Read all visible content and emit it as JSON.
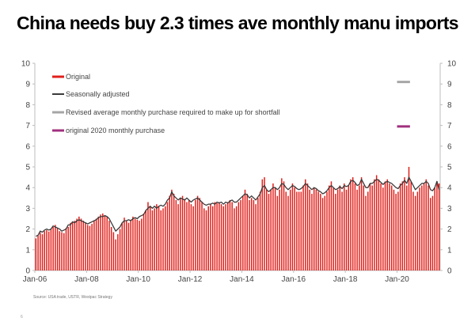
{
  "title": "China needs buy 2.3 times ave monthly manu imports",
  "source": "Source: USA trade, USTR, Westpac Strategy",
  "page_number": "6",
  "colors": {
    "original": "#e0201b",
    "seasonally_adjusted": "#3a3a3a",
    "revised": "#a6a6a6",
    "original_2020": "#a0307e",
    "axis": "#bdbdbd",
    "text": "#444444"
  },
  "chart_data": {
    "type": "bar",
    "title": "China needs buy 2.3 times ave monthly manu imports",
    "ylim": [
      0,
      10
    ],
    "yticks_left": [
      "0",
      "1",
      "2",
      "3",
      "4",
      "5",
      "6",
      "7",
      "8",
      "9",
      "10"
    ],
    "yticks_right": [
      "0",
      "1",
      "2",
      "3",
      "4",
      "5",
      "6",
      "7",
      "8",
      "9",
      "10"
    ],
    "x_tick_labels": [
      "Jan-06",
      "Jan-08",
      "Jan-10",
      "Jan-12",
      "Jan-14",
      "Jan-16",
      "Jan-18",
      "Jan-20"
    ],
    "x_start": "Jan-06",
    "x_end": "Jun-20",
    "legend": [
      {
        "key": "original",
        "label": "Original"
      },
      {
        "key": "seasonally_adjusted",
        "label": "Seasonally adjusted"
      },
      {
        "key": "revised",
        "label": "Revised average monthly purchase required to make up for shortfall"
      },
      {
        "key": "original_2020",
        "label": "original 2020 monthly purchase"
      }
    ],
    "series": [
      {
        "name": "Original",
        "type": "bar",
        "values": [
          1.55,
          1.68,
          1.82,
          1.75,
          1.9,
          1.95,
          1.88,
          2.0,
          2.1,
          2.2,
          2.05,
          1.9,
          1.85,
          1.8,
          2.05,
          2.1,
          2.3,
          2.35,
          2.4,
          2.5,
          2.6,
          2.5,
          2.4,
          2.3,
          2.2,
          2.15,
          2.25,
          2.4,
          2.5,
          2.6,
          2.7,
          2.75,
          2.65,
          2.6,
          2.4,
          2.1,
          1.85,
          1.5,
          1.75,
          2.0,
          2.3,
          2.55,
          2.4,
          2.3,
          2.45,
          2.6,
          2.5,
          2.45,
          2.4,
          2.5,
          2.75,
          2.9,
          3.3,
          3.1,
          2.9,
          3.0,
          3.2,
          3.1,
          2.9,
          3.0,
          3.1,
          3.3,
          3.6,
          3.9,
          3.7,
          3.4,
          3.2,
          3.5,
          3.6,
          3.45,
          3.3,
          3.4,
          3.2,
          3.1,
          3.4,
          3.6,
          3.5,
          3.3,
          3.0,
          2.9,
          3.1,
          3.2,
          3.1,
          3.3,
          3.25,
          3.3,
          3.2,
          3.1,
          3.2,
          3.3,
          3.4,
          3.3,
          3.0,
          3.1,
          3.3,
          3.4,
          3.6,
          3.9,
          3.7,
          3.4,
          3.5,
          3.4,
          3.2,
          3.5,
          3.8,
          4.4,
          4.5,
          3.9,
          3.7,
          3.9,
          4.2,
          4.0,
          3.6,
          3.9,
          4.45,
          4.3,
          3.8,
          3.6,
          3.9,
          4.2,
          4.0,
          3.8,
          3.8,
          3.8,
          4.1,
          4.4,
          4.2,
          3.9,
          3.7,
          4.0,
          3.9,
          3.8,
          3.7,
          3.5,
          3.6,
          3.8,
          4.1,
          4.3,
          4.0,
          3.7,
          3.9,
          4.1,
          3.8,
          4.2,
          3.9,
          4.1,
          4.4,
          4.5,
          4.2,
          3.9,
          4.1,
          4.5,
          4.1,
          3.6,
          3.8,
          4.2,
          4.1,
          4.4,
          4.6,
          4.4,
          4.2,
          4.0,
          4.3,
          4.4,
          4.2,
          4.1,
          3.9,
          3.7,
          3.8,
          4.2,
          4.3,
          4.5,
          4.1,
          5.0,
          4.3,
          3.8,
          3.6,
          3.8,
          4.0,
          4.1,
          4.2,
          4.4,
          4.1,
          3.5,
          3.6,
          4.0,
          4.3,
          4.2
        ]
      },
      {
        "name": "Seasonally adjusted",
        "type": "line",
        "values": [
          1.65,
          1.7,
          1.9,
          1.85,
          1.95,
          2.0,
          1.95,
          2.0,
          2.15,
          2.1,
          2.05,
          2.0,
          1.9,
          1.95,
          2.0,
          2.2,
          2.2,
          2.35,
          2.3,
          2.4,
          2.45,
          2.4,
          2.35,
          2.3,
          2.25,
          2.3,
          2.35,
          2.4,
          2.45,
          2.55,
          2.6,
          2.6,
          2.65,
          2.6,
          2.5,
          2.3,
          2.1,
          1.9,
          2.0,
          2.1,
          2.3,
          2.4,
          2.4,
          2.45,
          2.4,
          2.5,
          2.55,
          2.5,
          2.6,
          2.65,
          2.7,
          2.9,
          3.0,
          3.1,
          3.0,
          3.1,
          3.0,
          3.1,
          3.15,
          3.1,
          3.2,
          3.4,
          3.5,
          3.8,
          3.6,
          3.5,
          3.4,
          3.5,
          3.45,
          3.4,
          3.5,
          3.4,
          3.3,
          3.4,
          3.45,
          3.5,
          3.4,
          3.3,
          3.2,
          3.15,
          3.2,
          3.2,
          3.25,
          3.2,
          3.3,
          3.25,
          3.3,
          3.2,
          3.3,
          3.25,
          3.35,
          3.4,
          3.3,
          3.3,
          3.4,
          3.5,
          3.6,
          3.7,
          3.65,
          3.5,
          3.6,
          3.5,
          3.4,
          3.55,
          3.7,
          4.0,
          4.1,
          3.9,
          3.8,
          3.9,
          4.0,
          4.0,
          3.9,
          4.0,
          4.2,
          4.15,
          4.0,
          3.9,
          4.0,
          4.1,
          4.05,
          3.95,
          3.9,
          3.95,
          4.05,
          4.2,
          4.1,
          4.0,
          3.9,
          4.0,
          3.95,
          3.85,
          3.8,
          3.7,
          3.75,
          3.85,
          4.0,
          4.1,
          4.0,
          3.9,
          3.95,
          4.05,
          3.95,
          4.1,
          4.05,
          4.1,
          4.3,
          4.35,
          4.25,
          4.1,
          4.15,
          4.4,
          4.2,
          4.0,
          4.0,
          4.2,
          4.2,
          4.3,
          4.4,
          4.35,
          4.25,
          4.15,
          4.25,
          4.3,
          4.25,
          4.2,
          4.1,
          4.0,
          3.95,
          4.1,
          4.2,
          4.35,
          4.2,
          4.5,
          4.3,
          4.1,
          3.9,
          4.0,
          4.1,
          4.2,
          4.2,
          4.3,
          4.2,
          3.9,
          3.85,
          4.0,
          4.3,
          3.9
        ]
      },
      {
        "name": "Revised average monthly purchase required to make up for shortfall",
        "type": "hline",
        "value": 9.1,
        "from": "Jan-20",
        "to": "Jun-20"
      },
      {
        "name": "original 2020 monthly purchase",
        "type": "hline",
        "value": 6.95,
        "from": "Jan-20",
        "to": "Jun-20"
      }
    ]
  }
}
